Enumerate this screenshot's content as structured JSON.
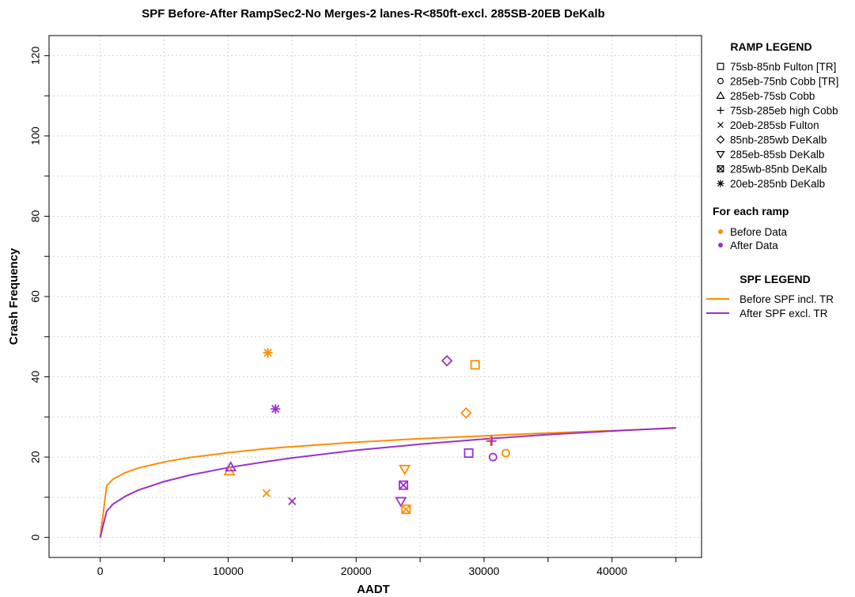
{
  "chart_data": {
    "type": "scatter",
    "title": "SPF Before-After RampSec2-No Merges-2 lanes-R<850ft-excl. 285SB-20EB DeKalb",
    "xlabel": "AADT",
    "ylabel": "Crash Frequency",
    "xlim": [
      -4000,
      47000
    ],
    "ylim": [
      -5,
      125
    ],
    "xticks": [
      0,
      10000,
      20000,
      30000,
      40000
    ],
    "yticks": [
      0,
      20,
      40,
      60,
      80,
      100,
      120
    ],
    "grid": true,
    "colors": {
      "before": "#FF8C00",
      "after": "#9932CC"
    },
    "ramp_legend": {
      "title": "RAMP LEGEND",
      "items": [
        {
          "label": "75sb-85nb Fulton [TR]",
          "shape": "square"
        },
        {
          "label": "285eb-75nb Cobb [TR]",
          "shape": "circle"
        },
        {
          "label": "285eb-75sb Cobb",
          "shape": "triangle-up"
        },
        {
          "label": "75sb-285eb high Cobb",
          "shape": "plus"
        },
        {
          "label": "20eb-285sb Fulton",
          "shape": "cross"
        },
        {
          "label": "85nb-285wb DeKalb",
          "shape": "diamond"
        },
        {
          "label": "285eb-85sb DeKalb",
          "shape": "triangle-down"
        },
        {
          "label": "285wb-85nb DeKalb",
          "shape": "square-x"
        },
        {
          "label": "20eb-285nb DeKalb",
          "shape": "asterisk"
        }
      ]
    },
    "period_legend": {
      "title": "For each ramp",
      "items": [
        {
          "label": "Before Data",
          "color": "#FF8C00"
        },
        {
          "label": "After Data",
          "color": "#9932CC"
        }
      ]
    },
    "spf_legend": {
      "title": "SPF LEGEND",
      "items": [
        {
          "label": "Before SPF incl. TR",
          "color": "#FF8C00"
        },
        {
          "label": "After SPF excl. TR",
          "color": "#9932CC"
        }
      ]
    },
    "points": [
      {
        "ramp": "75sb-85nb Fulton [TR]",
        "period": "before",
        "x": 29300,
        "y": 43
      },
      {
        "ramp": "75sb-85nb Fulton [TR]",
        "period": "after",
        "x": 28800,
        "y": 21
      },
      {
        "ramp": "285eb-75nb Cobb [TR]",
        "period": "before",
        "x": 31700,
        "y": 21
      },
      {
        "ramp": "285eb-75nb Cobb [TR]",
        "period": "after",
        "x": 30700,
        "y": 20
      },
      {
        "ramp": "285eb-75sb Cobb",
        "period": "before",
        "x": 10100,
        "y": 16.5
      },
      {
        "ramp": "285eb-75sb Cobb",
        "period": "after",
        "x": 10200,
        "y": 17.5
      },
      {
        "ramp": "75sb-285eb high Cobb",
        "period": "before",
        "x": 30500,
        "y": 24
      },
      {
        "ramp": "75sb-285eb high Cobb",
        "period": "after",
        "x": 30600,
        "y": 24
      },
      {
        "ramp": "20eb-285sb Fulton",
        "period": "before",
        "x": 13000,
        "y": 11
      },
      {
        "ramp": "20eb-285sb Fulton",
        "period": "after",
        "x": 15000,
        "y": 9
      },
      {
        "ramp": "85nb-285wb DeKalb",
        "period": "before",
        "x": 28600,
        "y": 31
      },
      {
        "ramp": "85nb-285wb DeKalb",
        "period": "after",
        "x": 27100,
        "y": 44
      },
      {
        "ramp": "285eb-85sb DeKalb",
        "period": "before",
        "x": 23800,
        "y": 17
      },
      {
        "ramp": "285eb-85sb DeKalb",
        "period": "after",
        "x": 23500,
        "y": 9
      },
      {
        "ramp": "285wb-85nb DeKalb",
        "period": "before",
        "x": 23900,
        "y": 7
      },
      {
        "ramp": "285wb-85nb DeKalb",
        "period": "after",
        "x": 23700,
        "y": 13
      },
      {
        "ramp": "20eb-285nb DeKalb",
        "period": "before",
        "x": 13100,
        "y": 46
      },
      {
        "ramp": "20eb-285nb DeKalb",
        "period": "after",
        "x": 13700,
        "y": 32
      }
    ],
    "curves": [
      {
        "label": "Before SPF incl. TR",
        "color": "#FF8C00",
        "x": [
          0,
          500,
          1000,
          2000,
          3000,
          5000,
          7000,
          10000,
          13000,
          15000,
          20000,
          25000,
          30000,
          35000,
          40000,
          45000
        ],
        "y": [
          0,
          12.8,
          14.5,
          16.2,
          17.3,
          18.8,
          19.9,
          21.1,
          22.1,
          22.6,
          23.7,
          24.6,
          25.3,
          26.0,
          26.6,
          27.2
        ]
      },
      {
        "label": "After SPF excl. TR",
        "color": "#9932CC",
        "x": [
          0,
          500,
          1000,
          2000,
          3000,
          5000,
          7000,
          10000,
          13000,
          15000,
          20000,
          25000,
          30000,
          35000,
          40000,
          45000
        ],
        "y": [
          0,
          6.5,
          8.3,
          10.3,
          11.8,
          13.9,
          15.5,
          17.4,
          18.9,
          19.8,
          21.7,
          23.2,
          24.5,
          25.6,
          26.5,
          27.3
        ]
      }
    ]
  }
}
